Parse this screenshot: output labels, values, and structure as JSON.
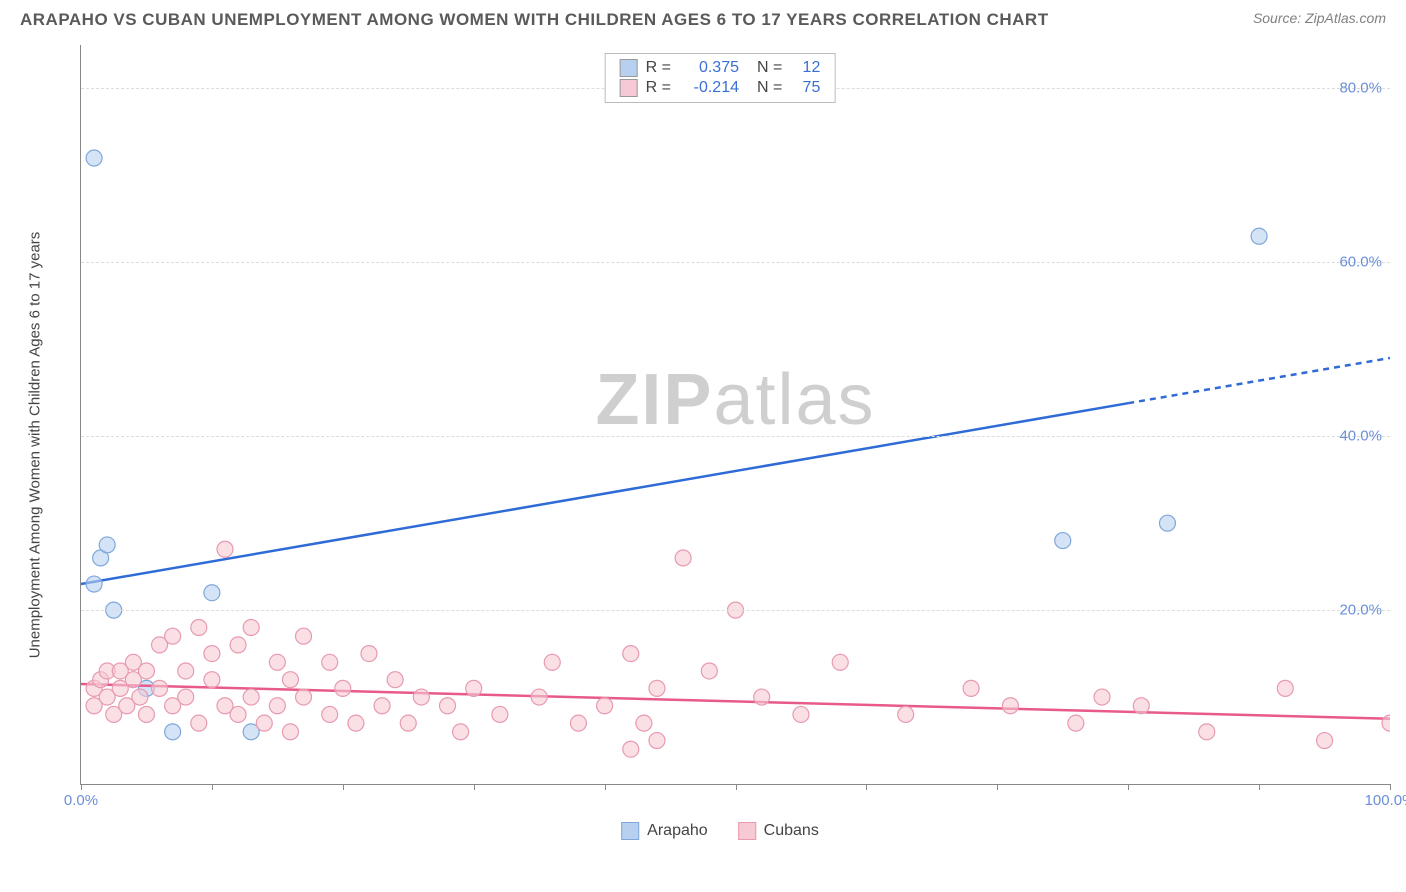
{
  "title": "ARAPAHO VS CUBAN UNEMPLOYMENT AMONG WOMEN WITH CHILDREN AGES 6 TO 17 YEARS CORRELATION CHART",
  "source": "Source: ZipAtlas.com",
  "watermark_a": "ZIP",
  "watermark_b": "atlas",
  "y_axis_label": "Unemployment Among Women with Children Ages 6 to 17 years",
  "chart": {
    "type": "scatter",
    "xlim": [
      0,
      100
    ],
    "ylim": [
      0,
      85
    ],
    "x_ticks": [
      0,
      10,
      20,
      30,
      40,
      50,
      60,
      70,
      80,
      90,
      100
    ],
    "x_tick_labels": {
      "0": "0.0%",
      "100": "100.0%"
    },
    "y_gridlines": [
      20,
      40,
      60,
      80
    ],
    "y_tick_labels": {
      "20": "20.0%",
      "40": "40.0%",
      "60": "60.0%",
      "80": "80.0%"
    },
    "background_color": "#ffffff",
    "grid_color": "#dcdcdc",
    "axis_color": "#888888",
    "tick_label_color": "#6a8fd8",
    "marker_radius": 8,
    "marker_stroke_width": 1.2,
    "line_width": 2.5
  },
  "series": [
    {
      "name": "Arapaho",
      "color_fill": "#b7d0f0",
      "color_stroke": "#7fa8d9",
      "line_color": "#2e6bd6",
      "R": "0.375",
      "N": "12",
      "points": [
        [
          1,
          72
        ],
        [
          1,
          23
        ],
        [
          1.5,
          26
        ],
        [
          2,
          27.5
        ],
        [
          2.5,
          20
        ],
        [
          5,
          11
        ],
        [
          7,
          6
        ],
        [
          10,
          22
        ],
        [
          13,
          6
        ],
        [
          75,
          28
        ],
        [
          83,
          30
        ],
        [
          90,
          63
        ]
      ],
      "trend": {
        "x1": 0,
        "y1": 23,
        "x2": 80,
        "y2": 44,
        "x3": 100,
        "y3": 49,
        "dash_from": 80
      }
    },
    {
      "name": "Cubans",
      "color_fill": "#f6c9d4",
      "color_stroke": "#e79ab0",
      "line_color": "#e75a8a",
      "R": "-0.214",
      "N": "75",
      "points": [
        [
          1,
          9
        ],
        [
          1,
          11
        ],
        [
          1.5,
          12
        ],
        [
          2,
          10
        ],
        [
          2,
          13
        ],
        [
          2.5,
          8
        ],
        [
          3,
          11
        ],
        [
          3,
          13
        ],
        [
          3.5,
          9
        ],
        [
          4,
          12
        ],
        [
          4,
          14
        ],
        [
          4.5,
          10
        ],
        [
          5,
          8
        ],
        [
          5,
          13
        ],
        [
          6,
          16
        ],
        [
          6,
          11
        ],
        [
          7,
          9
        ],
        [
          7,
          17
        ],
        [
          8,
          13
        ],
        [
          8,
          10
        ],
        [
          9,
          18
        ],
        [
          9,
          7
        ],
        [
          10,
          12
        ],
        [
          10,
          15
        ],
        [
          11,
          9
        ],
        [
          11,
          27
        ],
        [
          12,
          16
        ],
        [
          12,
          8
        ],
        [
          13,
          18
        ],
        [
          13,
          10
        ],
        [
          14,
          7
        ],
        [
          15,
          14
        ],
        [
          15,
          9
        ],
        [
          16,
          12
        ],
        [
          16,
          6
        ],
        [
          17,
          17
        ],
        [
          17,
          10
        ],
        [
          19,
          8
        ],
        [
          19,
          14
        ],
        [
          20,
          11
        ],
        [
          21,
          7
        ],
        [
          22,
          15
        ],
        [
          23,
          9
        ],
        [
          24,
          12
        ],
        [
          25,
          7
        ],
        [
          26,
          10
        ],
        [
          28,
          9
        ],
        [
          29,
          6
        ],
        [
          30,
          11
        ],
        [
          32,
          8
        ],
        [
          35,
          10
        ],
        [
          36,
          14
        ],
        [
          38,
          7
        ],
        [
          40,
          9
        ],
        [
          42,
          15
        ],
        [
          42,
          4
        ],
        [
          43,
          7
        ],
        [
          44,
          5
        ],
        [
          44,
          11
        ],
        [
          46,
          26
        ],
        [
          48,
          13
        ],
        [
          50,
          20
        ],
        [
          52,
          10
        ],
        [
          55,
          8
        ],
        [
          58,
          14
        ],
        [
          63,
          8
        ],
        [
          68,
          11
        ],
        [
          71,
          9
        ],
        [
          76,
          7
        ],
        [
          78,
          10
        ],
        [
          81,
          9
        ],
        [
          86,
          6
        ],
        [
          92,
          11
        ],
        [
          95,
          5
        ],
        [
          100,
          7
        ]
      ],
      "trend": {
        "x1": 0,
        "y1": 11.5,
        "x2": 100,
        "y2": 7.5
      }
    }
  ],
  "stats_box": {
    "rows": [
      {
        "swatch": "#b7d0f0",
        "R_label": "R =",
        "R": "0.375",
        "N_label": "N =",
        "N": "12"
      },
      {
        "swatch": "#f6c9d4",
        "R_label": "R =",
        "R": "-0.214",
        "N_label": "N =",
        "N": "75"
      }
    ]
  },
  "legend": {
    "items": [
      {
        "swatch": "#b7d0f0",
        "stroke": "#7fa8d9",
        "label": "Arapaho"
      },
      {
        "swatch": "#f6c9d4",
        "stroke": "#e79ab0",
        "label": "Cubans"
      }
    ]
  }
}
